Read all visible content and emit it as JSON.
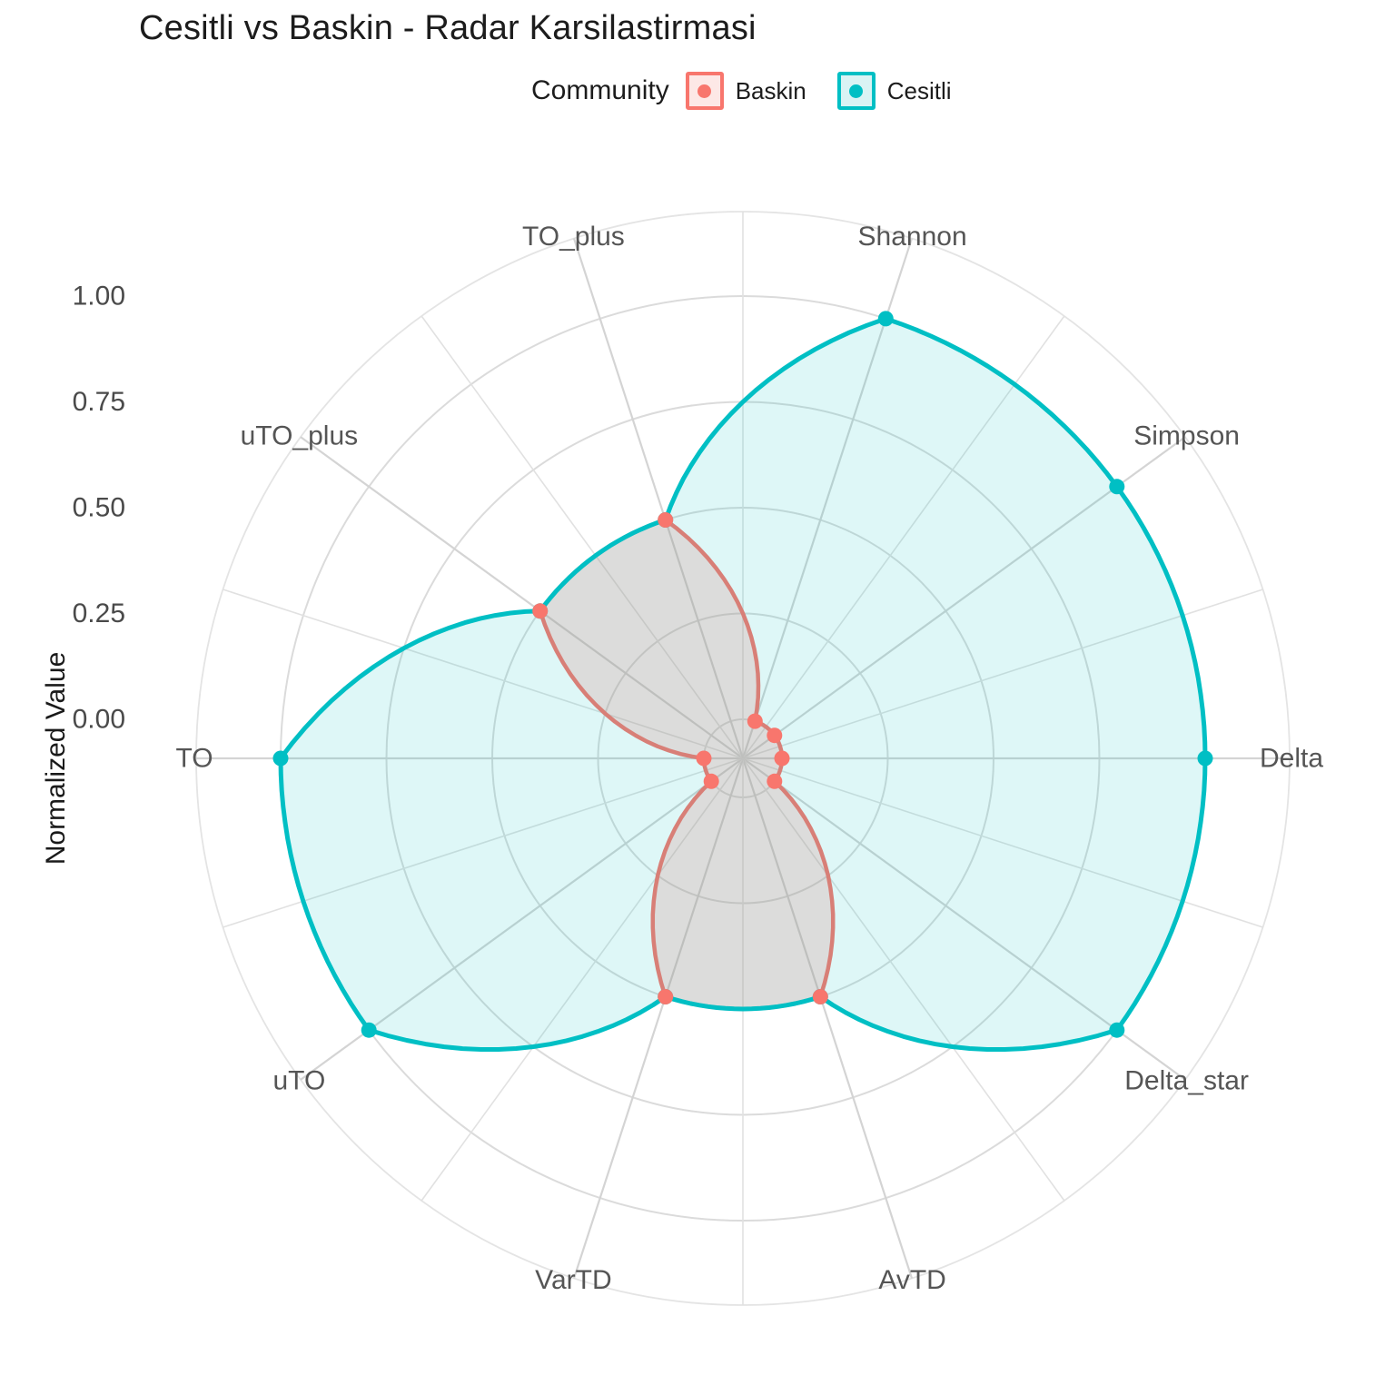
{
  "title": "Cesitli vs Baskin - Radar Karsilastirmasi",
  "legend": {
    "title": "Community",
    "items": [
      {
        "label": "Baskin",
        "key_fill": "#FDE8E6",
        "key_border": "#F8766D",
        "dot": "#F8766D"
      },
      {
        "label": "Cesitli",
        "key_fill": "#D9F3F4",
        "key_border": "#00BFC4",
        "dot": "#00BFC4"
      }
    ]
  },
  "ylabel": "Normalized Value",
  "chart_data": {
    "type": "radar",
    "title": "Cesitli vs Baskin - Radar Karsilastirmasi",
    "legend_title": "Community",
    "legend_position": "top",
    "grid": true,
    "categories": [
      "Shannon",
      "Simpson",
      "Delta",
      "Delta_star",
      "AvTD",
      "VarTD",
      "uTO",
      "TO",
      "uTO_plus",
      "TO_plus"
    ],
    "category_angles_deg": [
      18,
      54,
      90,
      126,
      162,
      198,
      234,
      270,
      306,
      342
    ],
    "series": [
      {
        "name": "Baskin",
        "color": "#F8766D",
        "fill": "rgba(248,118,109,0.22)",
        "values": [
          0.0,
          0.0,
          0.0,
          0.0,
          0.5,
          0.5,
          0.0,
          0.0,
          0.5,
          0.5
        ]
      },
      {
        "name": "Cesitli",
        "color": "#00BFC4",
        "fill": "rgba(0,191,196,0.13)",
        "values": [
          1.0,
          1.0,
          1.0,
          1.0,
          0.5,
          0.5,
          1.0,
          1.0,
          0.5,
          0.5
        ]
      }
    ],
    "radial_axis": {
      "label": "Normalized Value",
      "ticks": [
        0,
        0.25,
        0.5,
        0.75,
        1
      ],
      "tick_labels": [
        "0.00",
        "0.25",
        "0.50",
        "0.75",
        "1.00"
      ],
      "range": [
        0,
        1
      ]
    }
  }
}
